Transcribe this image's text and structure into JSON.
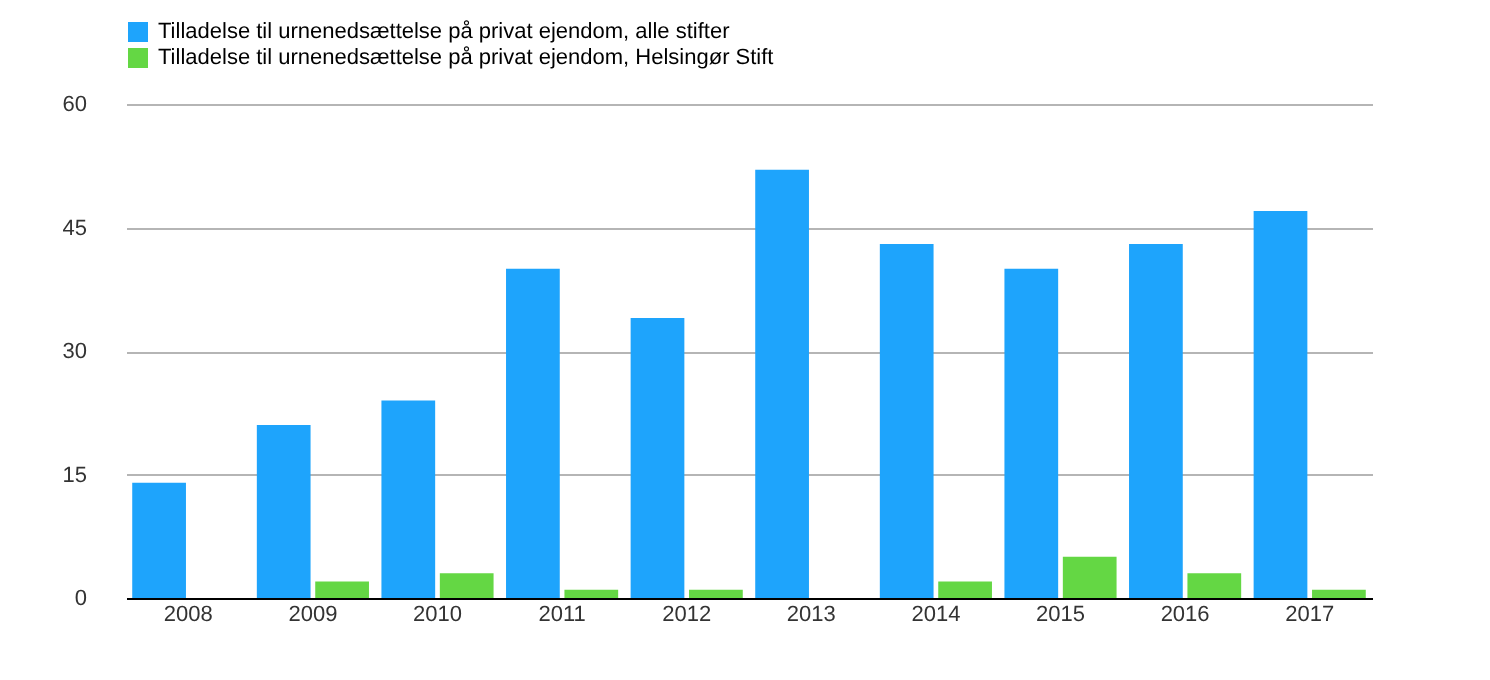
{
  "chart_data": {
    "type": "bar",
    "categories": [
      "2008",
      "2009",
      "2010",
      "2011",
      "2012",
      "2013",
      "2014",
      "2015",
      "2016",
      "2017"
    ],
    "series": [
      {
        "name": "Tilladelse til urnenedsættelse på privat ejendom, alle stifter",
        "color": "#1ea4fc",
        "values": [
          14,
          21,
          24,
          40,
          34,
          52,
          43,
          40,
          43,
          47
        ]
      },
      {
        "name": "Tilladelse til urnenedsættelse på privat ejendom, Helsingør Stift",
        "color": "#64d744",
        "values": [
          0,
          2,
          3,
          1,
          1,
          0,
          2,
          5,
          3,
          1
        ]
      }
    ],
    "ylim": [
      0,
      60
    ],
    "yticks": [
      0,
      15,
      30,
      45,
      60
    ],
    "grid": "y",
    "legend": "top"
  }
}
